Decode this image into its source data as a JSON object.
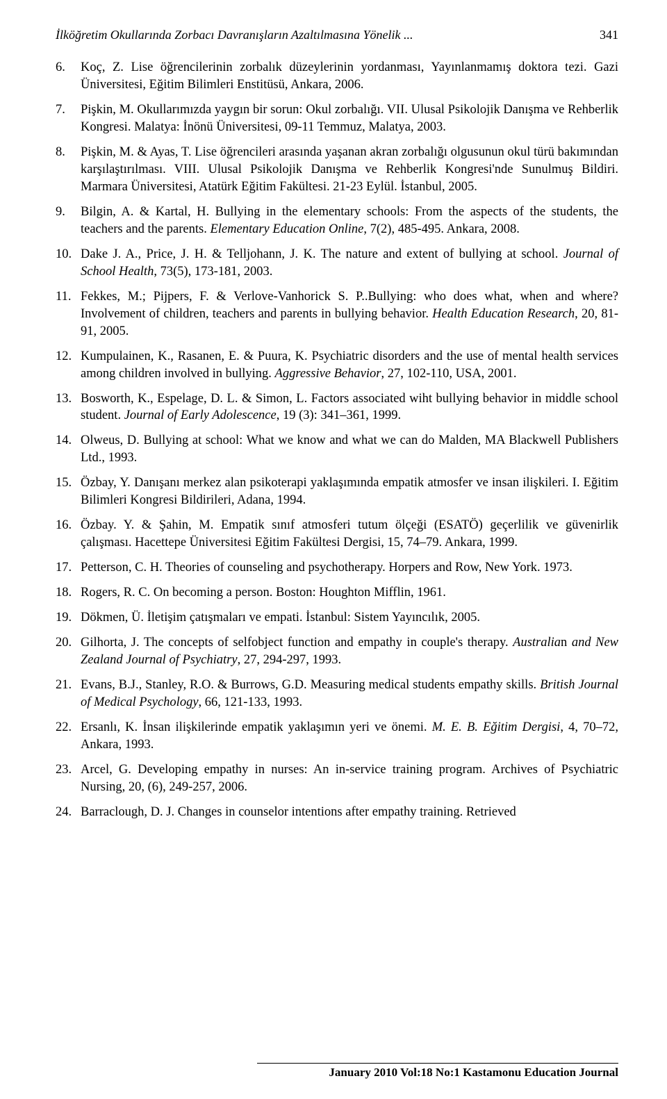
{
  "header": {
    "title": "İlköğretim Okullarında Zorbacı Davranışların Azaltılmasına Yönelik ...",
    "page_number": "341"
  },
  "references": [
    {
      "num": "6.",
      "html": "Koç, Z. Lise öğrencilerinin zorbalık düzeylerinin yordanması, Yayınlanmamış doktora tezi. Gazi Üniversitesi, Eğitim Bilimleri Enstitüsü, Ankara, 2006."
    },
    {
      "num": "7.",
      "html": "Pişkin, M. Okullarımızda yaygın bir sorun: Okul zorbalığı. VII. Ulusal Psikolojik Danışma ve Rehberlik Kongresi. Malatya: İnönü Üniversitesi, 09-11 Temmuz, Malatya, 2003."
    },
    {
      "num": "8.",
      "html": "Pişkin, M. & Ayas, T. Lise öğrencileri arasında yaşanan akran zorbalığı olgusunun okul türü bakımından karşılaştırılması. VIII. Ulusal Psikolojik Danışma ve Rehberlik Kongresi'nde Sunulmuş Bildiri. Marmara Üniversitesi, Atatürk Eğitim Fakültesi. 21-23 Eylül. İstanbul, 2005."
    },
    {
      "num": "9.",
      "html": "Bilgin, A. & Kartal, H. Bullying in the elementary schools: From the aspects of the students, the teachers and the parents. <span class=\"italic\">Elementary Education Online</span>, 7(2), 485-495. Ankara, 2008."
    },
    {
      "num": "10.",
      "html": "Dake J. A., Price, J. H. & Telljohann, J. K. The nature and extent of bullying at school. <span class=\"italic\">Journal of School Health</span>, 73(5), 173-181, 2003."
    },
    {
      "num": "11.",
      "html": "Fekkes, M.; Pijpers, F. & Verlove-Vanhorick S. P..Bullying: who does what, when and where? Involvement of children, teachers and parents in bullying behavior. <span class=\"italic\">Health Education Research</span>, 20, 81-91, 2005."
    },
    {
      "num": "12.",
      "html": "Kumpulainen, K., Rasanen, E. & Puura, K. Psychiatric disorders and the use of mental health services among children involved in bullying. <span class=\"italic\">Aggressive Behavior</span>, 27, 102-110, USA, 2001."
    },
    {
      "num": "13.",
      "html": "Bosworth, K., Espelage, D. L. & Simon, L. Factors associated wiht bullying behavior in middle school student. <span class=\"italic\">Journal of Early Adolescence</span>, 19 (3): 341–361, 1999."
    },
    {
      "num": "14.",
      "html": "Olweus, D. Bullying at school: What we know and what we can do Malden, MA Blackwell Publishers Ltd., 1993."
    },
    {
      "num": "15.",
      "html": "Özbay, Y. Danışanı merkez alan psikoterapi yaklaşımında empatik atmosfer ve insan ilişkileri. I. Eğitim Bilimleri Kongresi Bildirileri, Adana, 1994."
    },
    {
      "num": "16.",
      "html": "Özbay. Y. & Şahin, M. Empatik sınıf atmosferi tutum ölçeği (ESATÖ) geçerlilik ve güvenirlik çalışması. Hacettepe Üniversitesi Eğitim Fakültesi Dergisi, 15, 74–79. Ankara, 1999."
    },
    {
      "num": "17.",
      "html": "Petterson, C. H. Theories of counseling and psychotherapy. Horpers and Row, New York. 1973."
    },
    {
      "num": "18.",
      "html": "Rogers, R. C. On becoming a person. Boston: Houghton Mifflin, 1961."
    },
    {
      "num": "19.",
      "html": "Dökmen, Ü. İletişim çatışmaları ve empati. İstanbul: Sistem Yayıncılık, 2005."
    },
    {
      "num": "20.",
      "html": "Gilhorta, J. The concepts of selfobject function and empathy in couple's therapy. <span class=\"italic\">Australia</span>n <span class=\"italic\">and New Zealand Journal of Psychiatry</span>, 27, 294-297, 1993."
    },
    {
      "num": "21.",
      "html": "Evans, B.J., Stanley, R.O. & Burrows, G.D. Measuring medical students empathy skills. <span class=\"italic\">British Journal of Medical Psychology</span>, 66, 121-133, 1993."
    },
    {
      "num": "22.",
      "html": "Ersanlı, K. İnsan ilişkilerinde empatik yaklaşımın yeri ve önemi. <span class=\"italic\">M. E. B. Eğitim Dergisi</span>, 4, 70–72, Ankara, 1993."
    },
    {
      "num": "23.",
      "html": "Arcel, G. Developing empathy in nurses: An in-service training program. Archives of Psychiatric Nursing, 20, (6), 249-257, 2006."
    },
    {
      "num": "24.",
      "html": "Barraclough, D. J. Changes in counselor intentions after empathy training. Retrieved"
    }
  ],
  "footer": "January 2010 Vol:18 No:1 Kastamonu Education Journal"
}
